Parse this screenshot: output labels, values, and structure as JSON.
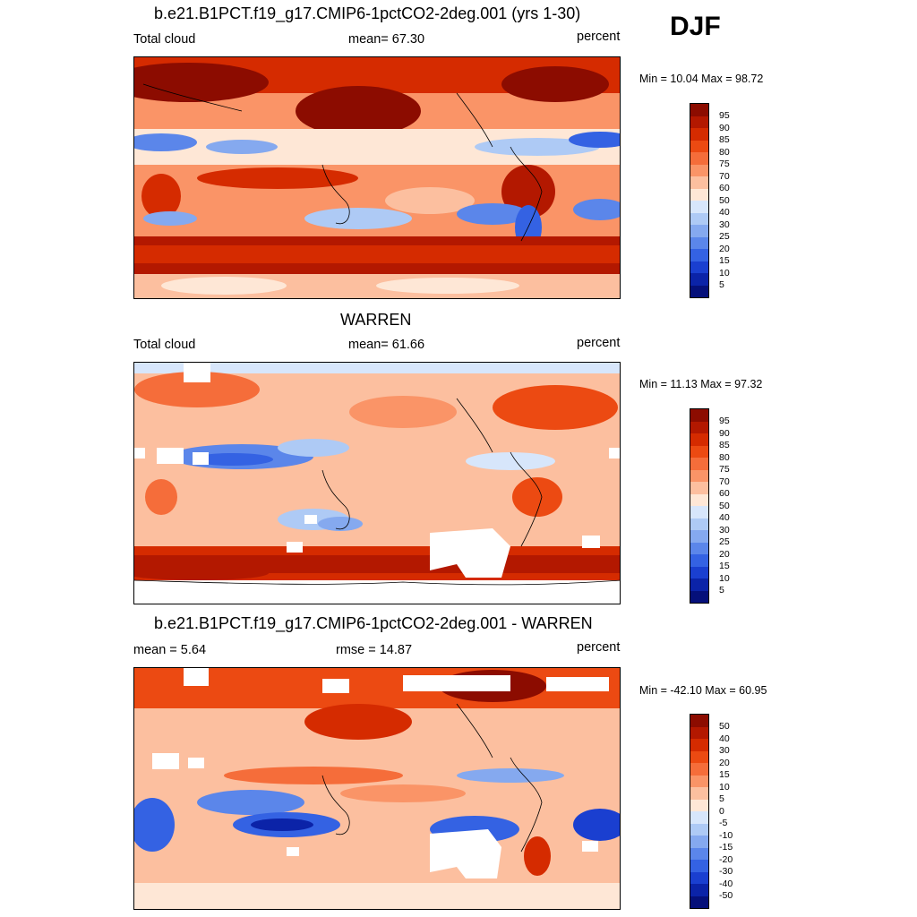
{
  "season": "DJF",
  "panels": [
    {
      "title": "b.e21.B1PCT.f19_g17.CMIP6-1pctCO2-2deg.001 (yrs 1-30)",
      "left_label": "Total cloud",
      "center_label": "mean=  67.30",
      "right_label": "percent",
      "minmax": "Min =  10.04 Max =  98.72",
      "colorbar_labels": [
        "95",
        "90",
        "85",
        "80",
        "75",
        "70",
        "60",
        "50",
        "40",
        "30",
        "25",
        "20",
        "15",
        "10",
        "5"
      ]
    },
    {
      "title": "WARREN",
      "left_label": "Total cloud",
      "center_label": "mean=  61.66",
      "right_label": "percent",
      "minmax": "Min =  11.13 Max =  97.32",
      "colorbar_labels": [
        "95",
        "90",
        "85",
        "80",
        "75",
        "70",
        "60",
        "50",
        "40",
        "30",
        "25",
        "20",
        "15",
        "10",
        "5"
      ]
    },
    {
      "title": "b.e21.B1PCT.f19_g17.CMIP6-1pctCO2-2deg.001 - WARREN",
      "left_label": "mean =   5.64",
      "center_label": "rmse =  14.87",
      "right_label": "percent",
      "minmax": "Min = -42.10 Max =  60.95",
      "colorbar_labels": [
        "50",
        "40",
        "30",
        "20",
        "15",
        "10",
        "5",
        "0",
        "-5",
        "-10",
        "-15",
        "-20",
        "-30",
        "-40",
        "-50"
      ]
    }
  ],
  "colors": {
    "scale": [
      "#8c0c00",
      "#b31800",
      "#d52b00",
      "#ec4a12",
      "#f56d3a",
      "#fa9467",
      "#fcbf9f",
      "#fee7d6",
      "#d7e6fb",
      "#aecaf5",
      "#85a9ef",
      "#5b86ea",
      "#3462e3",
      "#1a3fd0",
      "#0b23a8",
      "#05107a"
    ]
  }
}
